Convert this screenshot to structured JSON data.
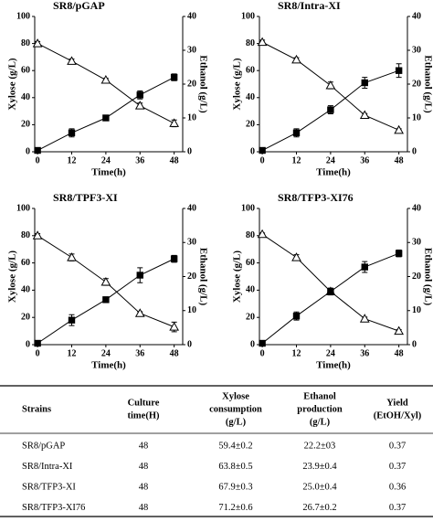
{
  "chart_data": [
    {
      "type": "line",
      "title": "SR8/pGAP",
      "xlabel": "Time(h)",
      "ylabel": "Xylose (g/L)",
      "y2label": "Ethanol (g/L)",
      "x": [
        0,
        12,
        24,
        36,
        48
      ],
      "xlim": [
        -1,
        51
      ],
      "xticks": [
        0,
        12,
        24,
        36,
        48
      ],
      "ylim": [
        0,
        100
      ],
      "yticks": [
        0,
        20,
        40,
        60,
        80,
        100
      ],
      "y2lim": [
        0,
        40
      ],
      "y2ticks": [
        0,
        10,
        20,
        30,
        40
      ],
      "series": [
        {
          "color": "#000000",
          "marker": "open-triangle",
          "values": [
            80,
            67,
            53,
            34,
            21
          ],
          "errors": [
            1.5,
            1.5,
            1.2,
            2,
            2.5
          ]
        },
        {
          "color": "#000000",
          "marker": "filled-square",
          "axis": "y2",
          "values": [
            0.4,
            5.6,
            10,
            16.8,
            22
          ],
          "errors": [
            0.3,
            1.2,
            0.8,
            1.2,
            1
          ]
        }
      ]
    },
    {
      "type": "line",
      "title": "SR8/Intra-XI",
      "xlabel": "Time(h)",
      "ylabel": "Xylose (g/L)",
      "y2label": "Ethanol (g/L)",
      "x": [
        0,
        12,
        24,
        36,
        48
      ],
      "xlim": [
        -1,
        51
      ],
      "xticks": [
        0,
        12,
        24,
        36,
        48
      ],
      "ylim": [
        0,
        100
      ],
      "yticks": [
        0,
        20,
        40,
        60,
        80,
        100
      ],
      "y2lim": [
        0,
        40
      ],
      "y2ticks": [
        0,
        10,
        20,
        30,
        40
      ],
      "series": [
        {
          "color": "#000000",
          "marker": "open-triangle",
          "values": [
            81,
            68,
            49,
            27,
            16
          ],
          "errors": [
            1.5,
            1.5,
            2.5,
            1.2,
            1
          ]
        },
        {
          "color": "#000000",
          "marker": "filled-square",
          "axis": "y2",
          "values": [
            0.4,
            5.6,
            12.4,
            20.4,
            24
          ],
          "errors": [
            0.3,
            1.2,
            1.2,
            1.6,
            2
          ]
        }
      ]
    },
    {
      "type": "line",
      "title": "SR8/TPF3-XI",
      "xlabel": "Time(h)",
      "ylabel": "Xylose (g/L)",
      "y2label": "Ethanol (g/L)",
      "x": [
        0,
        12,
        24,
        36,
        48
      ],
      "xlim": [
        -1,
        51
      ],
      "xticks": [
        0,
        12,
        24,
        36,
        48
      ],
      "ylim": [
        0,
        100
      ],
      "yticks": [
        0,
        20,
        40,
        60,
        80,
        100
      ],
      "y2lim": [
        0,
        40
      ],
      "y2ticks": [
        0,
        10,
        20,
        30,
        40
      ],
      "series": [
        {
          "color": "#000000",
          "marker": "open-triangle",
          "values": [
            80,
            64,
            46,
            23,
            13
          ],
          "errors": [
            1.5,
            2.5,
            2.5,
            1.2,
            3.5
          ]
        },
        {
          "color": "#000000",
          "marker": "filled-square",
          "axis": "y2",
          "values": [
            0.4,
            7.2,
            13.2,
            20.4,
            25.2
          ],
          "errors": [
            0.3,
            1.6,
            0.8,
            2.2,
            1
          ]
        }
      ]
    },
    {
      "type": "line",
      "title": "SR8/TFP3-XI76",
      "xlabel": "Time(h)",
      "ylabel": "Xylose (g/L)",
      "y2label": "Ethanol (g/L)",
      "x": [
        0,
        12,
        24,
        36,
        48
      ],
      "xlim": [
        -1,
        51
      ],
      "xticks": [
        0,
        12,
        24,
        36,
        48
      ],
      "ylim": [
        0,
        100
      ],
      "yticks": [
        0,
        20,
        40,
        60,
        80,
        100
      ],
      "y2lim": [
        0,
        40
      ],
      "y2ticks": [
        0,
        10,
        20,
        30,
        40
      ],
      "series": [
        {
          "color": "#000000",
          "marker": "open-triangle",
          "values": [
            81,
            64,
            39,
            19,
            10
          ],
          "errors": [
            1,
            2,
            2,
            1.2,
            1
          ]
        },
        {
          "color": "#000000",
          "marker": "filled-square",
          "axis": "y2",
          "values": [
            0.4,
            8.4,
            15.6,
            22.8,
            26.8
          ],
          "errors": [
            0.3,
            1.2,
            1,
            1.6,
            1
          ]
        }
      ]
    }
  ],
  "table": {
    "headers": [
      [
        "Strains"
      ],
      [
        "Culture",
        "time(H)"
      ],
      [
        "Xylose",
        "consumption",
        "(g/L)"
      ],
      [
        "Ethanol",
        "production",
        "(g/L)"
      ],
      [
        "Yield",
        "(EtOH/Xyl)"
      ]
    ],
    "rows": [
      [
        "SR8/pGAP",
        "48",
        "59.4±0.2",
        "22.2±03",
        "0.37"
      ],
      [
        "SR8/Intra-XI",
        "48",
        "63.8±0.5",
        "23.9±0.4",
        "0.37"
      ],
      [
        "SR8/TFP3-XI",
        "48",
        "67.9±0.3",
        "25.0±0.4",
        "0.36"
      ],
      [
        "SR8/TFP3-XI76",
        "48",
        "71.2±0.6",
        "26.7±0.2",
        "0.37"
      ]
    ]
  }
}
